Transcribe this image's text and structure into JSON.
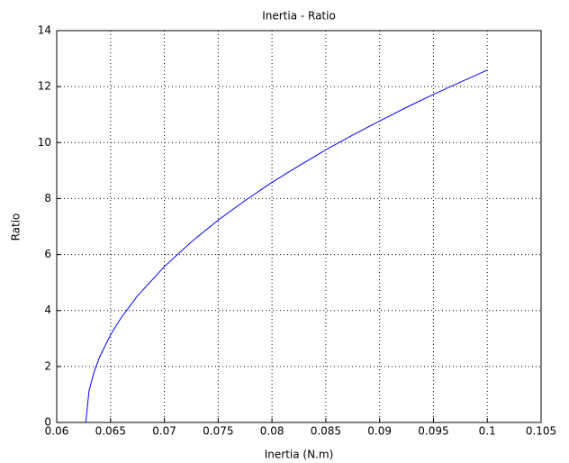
{
  "chart_data": {
    "type": "line",
    "title": "Inertia - Ratio",
    "x_label": "Inertia (N.m)",
    "y_label": "Ratio",
    "x": [
      0.0627,
      0.063,
      0.0635,
      0.064,
      0.065,
      0.066,
      0.0675,
      0.07,
      0.0725,
      0.075,
      0.0775,
      0.08,
      0.0825,
      0.085,
      0.0875,
      0.09,
      0.0925,
      0.095,
      0.0975,
      0.1
    ],
    "series": [
      {
        "name": "Ratio",
        "color": "#0000ff",
        "values": [
          0,
          1.13,
          1.84,
          2.35,
          3.13,
          3.75,
          4.52,
          5.57,
          6.45,
          7.23,
          7.93,
          8.58,
          9.17,
          9.74,
          10.27,
          10.77,
          11.26,
          11.72,
          12.16,
          12.59
        ]
      }
    ],
    "xlim": [
      0.06,
      0.105
    ],
    "xticks": [
      0.06,
      0.065,
      0.07,
      0.075,
      0.08,
      0.085,
      0.09,
      0.095,
      0.1,
      0.105
    ],
    "ylim": [
      0,
      14
    ],
    "yticks": [
      0,
      2,
      4,
      6,
      8,
      10,
      12,
      14
    ],
    "grid": true
  }
}
